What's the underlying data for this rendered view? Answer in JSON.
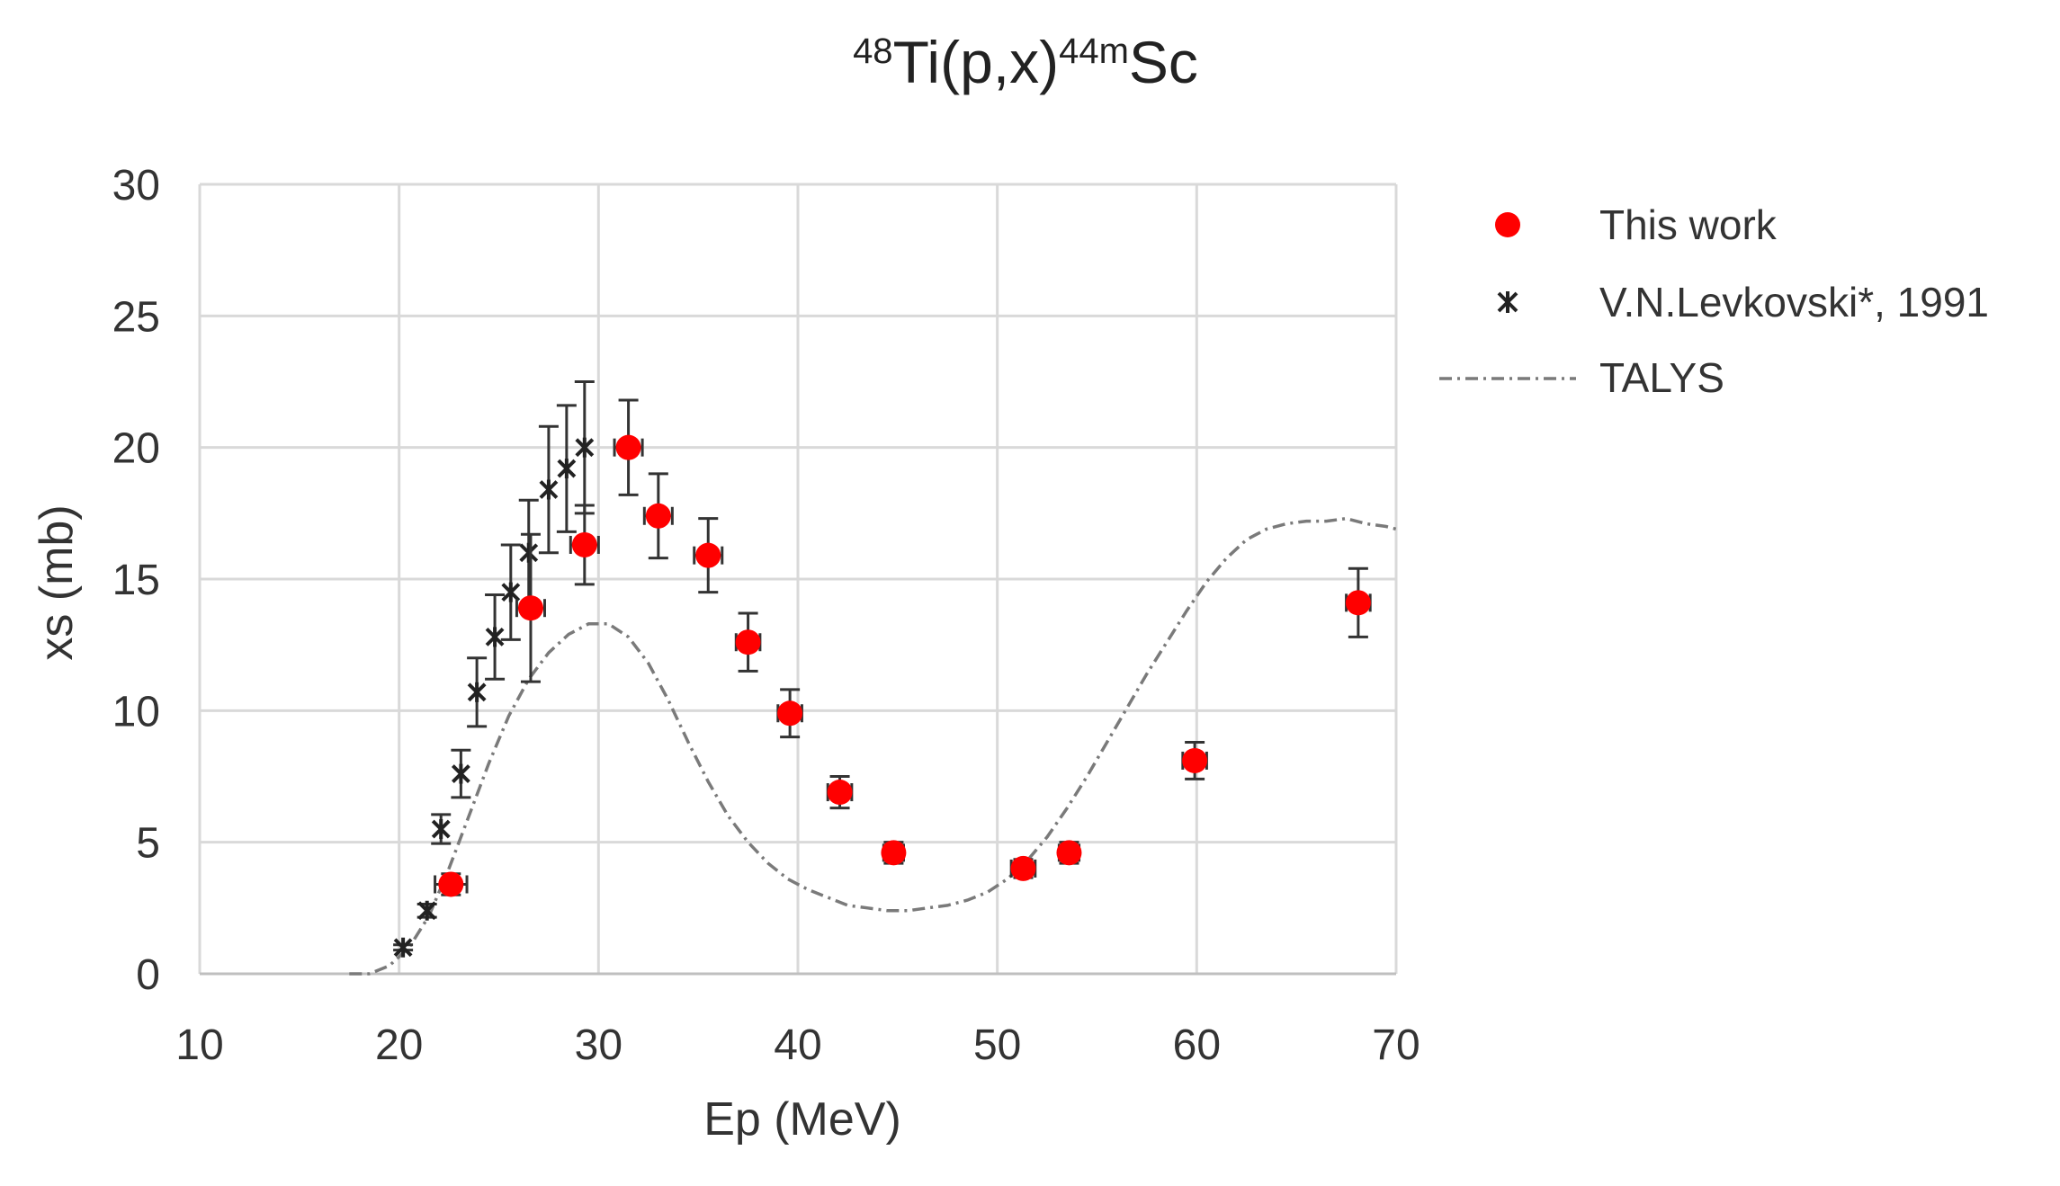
{
  "chart_data": {
    "type": "scatter",
    "title": {
      "pre": "48",
      "main1": "Ti(p,x)",
      "sup2": "44m",
      "main2": "Sc"
    },
    "xlabel": "Ep (MeV)",
    "ylabel": "xs (mb)",
    "xlim": [
      10,
      70
    ],
    "ylim": [
      0,
      30
    ],
    "xticks": [
      10,
      20,
      30,
      40,
      50,
      60,
      70
    ],
    "yticks": [
      0,
      5,
      10,
      15,
      20,
      25,
      30
    ],
    "grid": true,
    "legend_position": "right",
    "series": [
      {
        "name": "This work",
        "marker": "circle",
        "color": "#ff0000",
        "points": [
          {
            "x": 22.6,
            "y": 3.4,
            "xerr": 0.8,
            "yerr": 0.4
          },
          {
            "x": 26.6,
            "y": 13.9,
            "xerr": 0.7,
            "yerr": 2.8
          },
          {
            "x": 29.3,
            "y": 16.3,
            "xerr": 0.7,
            "yerr": 1.5
          },
          {
            "x": 31.5,
            "y": 20.0,
            "xerr": 0.7,
            "yerr": 1.8
          },
          {
            "x": 33.0,
            "y": 17.4,
            "xerr": 0.7,
            "yerr": 1.6
          },
          {
            "x": 35.5,
            "y": 15.9,
            "xerr": 0.7,
            "yerr": 1.4
          },
          {
            "x": 37.5,
            "y": 12.6,
            "xerr": 0.6,
            "yerr": 1.1
          },
          {
            "x": 39.6,
            "y": 9.9,
            "xerr": 0.6,
            "yerr": 0.9
          },
          {
            "x": 42.1,
            "y": 6.9,
            "xerr": 0.6,
            "yerr": 0.6
          },
          {
            "x": 44.8,
            "y": 4.6,
            "xerr": 0.5,
            "yerr": 0.4
          },
          {
            "x": 51.3,
            "y": 4.0,
            "xerr": 0.6,
            "yerr": 0.35
          },
          {
            "x": 53.6,
            "y": 4.6,
            "xerr": 0.5,
            "yerr": 0.4
          },
          {
            "x": 59.9,
            "y": 8.1,
            "xerr": 0.6,
            "yerr": 0.7
          },
          {
            "x": 68.1,
            "y": 14.1,
            "xerr": 0.6,
            "yerr": 1.3
          }
        ]
      },
      {
        "name": "V.N.Levkovski*, 1991",
        "marker": "star",
        "color": "#222222",
        "points": [
          {
            "x": 20.2,
            "y": 1.0,
            "yerr": 0.1
          },
          {
            "x": 21.4,
            "y": 2.4,
            "yerr": 0.25
          },
          {
            "x": 22.1,
            "y": 5.5,
            "yerr": 0.55
          },
          {
            "x": 23.1,
            "y": 7.6,
            "yerr": 0.9
          },
          {
            "x": 23.9,
            "y": 10.7,
            "yerr": 1.3
          },
          {
            "x": 24.8,
            "y": 12.8,
            "yerr": 1.6
          },
          {
            "x": 25.6,
            "y": 14.5,
            "yerr": 1.8
          },
          {
            "x": 26.5,
            "y": 16.0,
            "yerr": 2.0
          },
          {
            "x": 27.5,
            "y": 18.4,
            "yerr": 2.4
          },
          {
            "x": 28.4,
            "y": 19.2,
            "yerr": 2.4
          },
          {
            "x": 29.3,
            "y": 20.0,
            "yerr": 2.5
          }
        ]
      },
      {
        "name": "TALYS",
        "style": "dash-dot",
        "color": "#7a7a7a",
        "x": [
          17.5,
          18.5,
          19.5,
          20.5,
          21.5,
          22.5,
          23.5,
          24.5,
          25.5,
          26.5,
          27.5,
          28.5,
          29.5,
          30.5,
          31.5,
          32.5,
          33.5,
          34.5,
          35.5,
          36.5,
          37.5,
          38.5,
          39.5,
          40.5,
          41.5,
          42.5,
          43.5,
          44.5,
          45.5,
          46.5,
          47.5,
          48.5,
          49.5,
          50.5,
          51.5,
          52.5,
          53.5,
          54.5,
          55.5,
          56.5,
          57.5,
          58.5,
          59.5,
          60.5,
          61.5,
          62.5,
          63.5,
          64.5,
          65.5,
          66.5,
          67.5,
          68.5,
          69.5,
          70.0
        ],
        "y": [
          0.0,
          0.0,
          0.3,
          1.0,
          2.2,
          4.0,
          6.0,
          8.0,
          9.8,
          11.2,
          12.2,
          12.9,
          13.3,
          13.3,
          12.8,
          11.8,
          10.4,
          8.8,
          7.3,
          6.0,
          5.0,
          4.2,
          3.6,
          3.2,
          2.9,
          2.6,
          2.5,
          2.4,
          2.4,
          2.5,
          2.6,
          2.8,
          3.1,
          3.6,
          4.3,
          5.2,
          6.3,
          7.5,
          8.8,
          10.1,
          11.4,
          12.6,
          13.8,
          14.9,
          15.8,
          16.5,
          16.9,
          17.1,
          17.2,
          17.2,
          17.3,
          17.1,
          17.0,
          16.9
        ]
      }
    ]
  }
}
